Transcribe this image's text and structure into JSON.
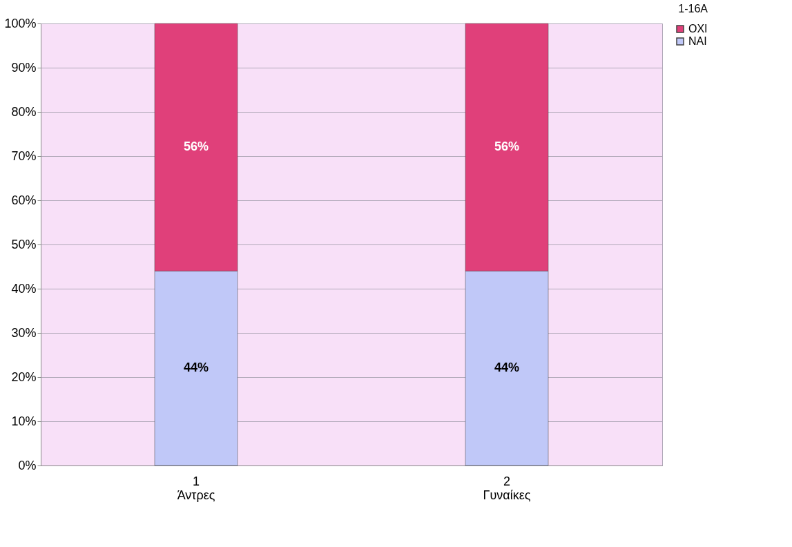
{
  "chart_data": {
    "type": "bar",
    "title": "1-16A",
    "stacked": true,
    "categories": [
      "1\nΆντρες",
      "2\nΓυναίκες"
    ],
    "series": [
      {
        "name": "NAI",
        "color": "#c0c8f8",
        "values": [
          44,
          44
        ],
        "value_labels": [
          "44%",
          "44%"
        ]
      },
      {
        "name": "OXI",
        "color": "#e0407a",
        "values": [
          56,
          56
        ],
        "value_labels": [
          "56%",
          "56%"
        ]
      }
    ],
    "ylim": [
      0,
      100
    ],
    "yticks": [
      {
        "value": 0,
        "label": "0%"
      },
      {
        "value": 10,
        "label": "10%"
      },
      {
        "value": 20,
        "label": "20%"
      },
      {
        "value": 30,
        "label": "30%"
      },
      {
        "value": 40,
        "label": "40%"
      },
      {
        "value": 50,
        "label": "50%"
      },
      {
        "value": 60,
        "label": "60%"
      },
      {
        "value": 70,
        "label": "70%"
      },
      {
        "value": 80,
        "label": "80%"
      },
      {
        "value": 90,
        "label": "90%"
      },
      {
        "value": 100,
        "label": "100%"
      }
    ],
    "grid": "y",
    "legend": "right"
  }
}
